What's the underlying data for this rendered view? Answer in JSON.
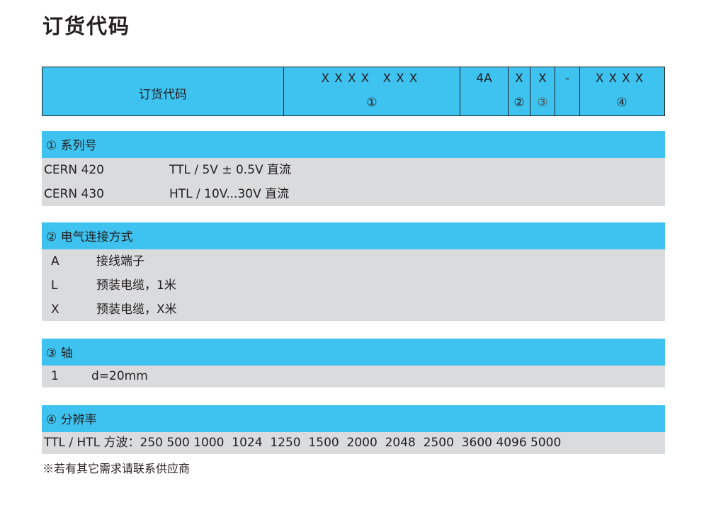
{
  "title": "订货代码",
  "code": {
    "label": "订货代码",
    "seg1_top": "XXXX XXX",
    "seg1_bot": "①",
    "seg2_top": "4A",
    "seg3_top": "X",
    "seg3_bot": "②",
    "seg4_top": "X",
    "seg4_bot": "③",
    "seg5_top": "-",
    "seg6_top": "XXXX",
    "seg6_bot": "④"
  },
  "sections": {
    "series": {
      "heading": "① 系列号",
      "rows": [
        {
          "code": "CERN 420",
          "desc": "TTL / 5V ± 0.5V 直流"
        },
        {
          "code": "CERN 430",
          "desc": "HTL / 10V...30V 直流"
        }
      ]
    },
    "connection": {
      "heading": "② 电气连接方式",
      "rows": [
        {
          "code": "A",
          "desc": "接线端子"
        },
        {
          "code": "L",
          "desc": "预装电缆，1米"
        },
        {
          "code": "X",
          "desc": "预装电缆，X米"
        }
      ]
    },
    "shaft": {
      "heading": "③ 轴",
      "rows": [
        {
          "code": "1",
          "desc": "d=20mm"
        }
      ]
    },
    "resolution": {
      "heading": "④ 分辨率",
      "heading_mark": "※",
      "line": "TTL / HTL 方波：250 500 1000  1024  1250  1500  2000  2048  2500  3600 4096 5000"
    }
  },
  "note": "※若有其它需求请联系供应商",
  "colors": {
    "accent": "#3ec3f0",
    "row_bg": "#dadbdc",
    "text": "#231f20"
  }
}
